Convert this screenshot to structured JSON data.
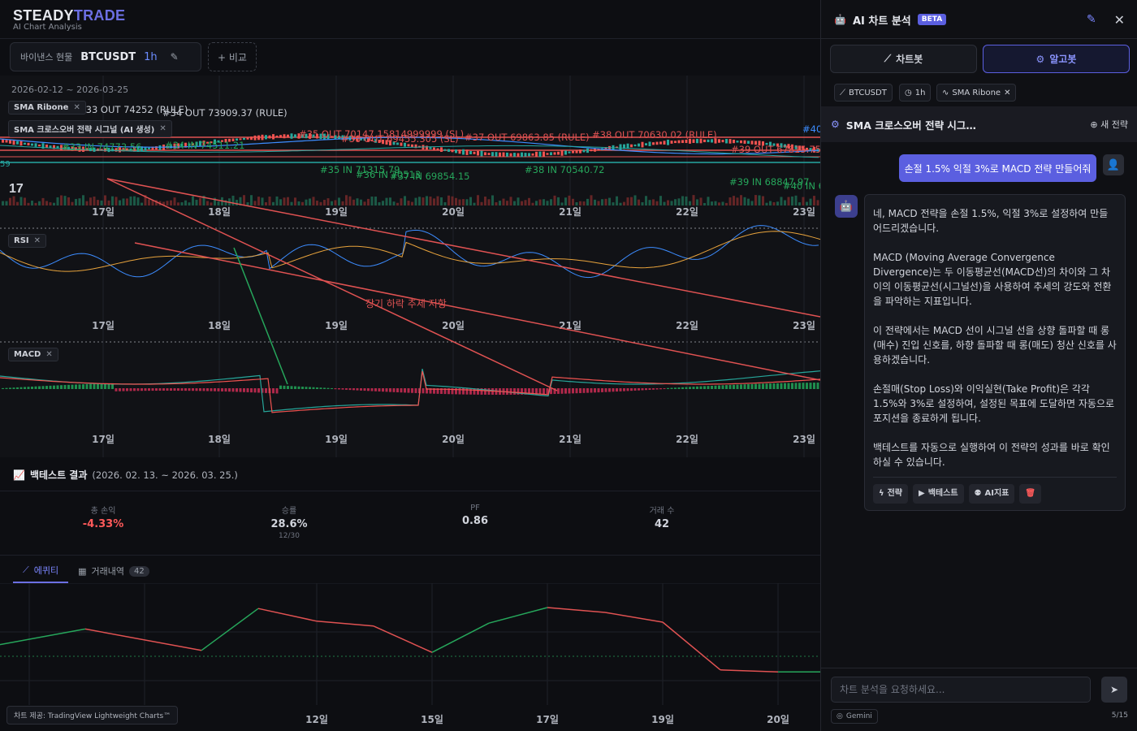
{
  "brand": {
    "name_part1": "STEADY",
    "name_part2": "TRADE",
    "subtitle": "AI Chart Analysis"
  },
  "toolbar": {
    "exchange": "바이낸스 현물",
    "symbol": "BTCUSDT",
    "timeframe": "1h",
    "compare_label": "+ 비교"
  },
  "chart": {
    "date_range": "2026-02-12 ~ 2026-03-25",
    "legend_main": "SMA Ribone",
    "legend_signal": "SMA 크로스오버 전략 시그널 (AI 생성)",
    "legend_rsi": "RSI",
    "legend_macd": "MACD",
    "x_ticks": [
      "17일",
      "18일",
      "19일",
      "20일",
      "21일",
      "22일",
      "23일"
    ],
    "trade_labels": [
      {
        "text": "#33 OUT 74252 (RULE)",
        "color": "#c8ccd4"
      },
      {
        "text": "#34 OUT 73909.37 (RULE)",
        "color": "#c8ccd4"
      },
      {
        "text": "#35 OUT 70147.15814999999 (SL)",
        "color": "#e05252"
      },
      {
        "text": "#36 OUT 69455.305 (SL)",
        "color": "#e05252"
      },
      {
        "text": "#37 OUT 69863.85 (RULE)",
        "color": "#e05252"
      },
      {
        "text": "#38 OUT 70630.02 (RULE)",
        "color": "#e05252"
      },
      {
        "text": "#39 OUT 67815.7502",
        "color": "#e05252"
      },
      {
        "text": "#40",
        "color": "#3c8cff"
      },
      {
        "text": "#33 IN 74773.56",
        "color": "#26a65b"
      },
      {
        "text": "#34 IN 74511.21",
        "color": "#26a65b"
      },
      {
        "text": "#35 IN 71315.79",
        "color": "#26a65b"
      },
      {
        "text": "#36 IN 70513",
        "color": "#26a65b"
      },
      {
        "text": "#37 IN 69854.15",
        "color": "#26a65b"
      },
      {
        "text": "#38 IN 70540.72",
        "color": "#26a65b"
      },
      {
        "text": "#39 IN 68847.97",
        "color": "#26a65b"
      },
      {
        "text": "#40 IN 6",
        "color": "#26a65b"
      }
    ],
    "annotation": "장기 하락 추세 저항",
    "left_edge_price": "59"
  },
  "backtest": {
    "title": "백테스트 결과",
    "range": "(2026. 02. 13. ~ 2026. 03. 25.)",
    "stats": [
      {
        "label": "총 손익",
        "value": "-4.33%",
        "sub": "",
        "color": "#ff5a5a"
      },
      {
        "label": "승률",
        "value": "28.6%",
        "sub": "12/30",
        "color": "#d1d4dc"
      },
      {
        "label": "PF",
        "value": "0.86",
        "sub": "",
        "color": "#d1d4dc"
      },
      {
        "label": "거래 수",
        "value": "42",
        "sub": "",
        "color": "#d1d4dc"
      }
    ],
    "tabs": [
      {
        "label": "에퀴티"
      },
      {
        "label": "거래내역",
        "badge": "42"
      }
    ],
    "equity_x_ticks": [
      "12일",
      "15일",
      "17일",
      "19일",
      "20일"
    ],
    "equity": [
      0.62,
      0.78,
      0.56,
      0.99,
      0.86,
      0.81,
      0.54,
      0.84,
      1.0,
      0.95,
      0.85,
      0.36,
      0.34,
      0.34,
      0.34
    ]
  },
  "credit": "차트 제공: TradingView Lightweight Charts™",
  "panel": {
    "title": "AI 차트 분석",
    "beta": "BETA",
    "modes": [
      "차트봇",
      "알고봇"
    ],
    "chips": [
      "BTCUSDT",
      "1h",
      "SMA Ribone"
    ],
    "strategy_name": "SMA 크로스오버 전략 시그…",
    "new_strategy": "새 전략",
    "user_message": "손절 1.5% 익절 3%로 MACD 전략 만들어줘",
    "bot_paragraphs": [
      "네, MACD 전략을 손절 1.5%, 익절 3%로 설정하여 만들어드리겠습니다.",
      "MACD (Moving Average Convergence Divergence)는 두 이동평균선(MACD선)의 차이와 그 차이의 이동평균선(시그널선)을 사용하여 추세의 강도와 전환을 파악하는 지표입니다.",
      "이 전략에서는 MACD 선이 시그널 선을 상향 돌파할 때 롱(매수) 진입 신호를, 하향 돌파할 때 롱(매도) 청산 신호를 사용하겠습니다.",
      "손절매(Stop Loss)와 이익실현(Take Profit)은 각각 1.5%와 3%로 설정하여, 설정된 목표에 도달하면 자동으로 포지션을 종료하게 됩니다.",
      "백테스트를 자동으로 실행하여 이 전략의 성과를 바로 확인하실 수 있습니다."
    ],
    "actions": [
      "전략",
      "백테스트",
      "AI지표"
    ],
    "input_placeholder": "차트 분석을 요청하세요...",
    "model": "Gemini",
    "counter": "5/15"
  }
}
